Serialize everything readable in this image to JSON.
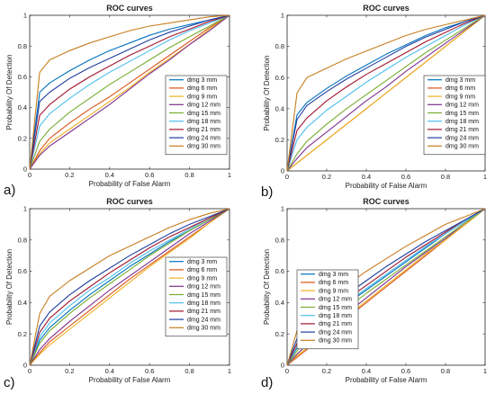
{
  "figure": {
    "series_names": [
      "dmg 3 mm",
      "dmg 6 mm",
      "dmg 9 mm",
      "dmg 12 mm",
      "dmg 15 mm",
      "dmg 18 mm",
      "dmg 21 mm",
      "dmg 24 mm",
      "dmg 30 mm"
    ],
    "series_colors": [
      "#0072BD",
      "#D95319",
      "#EDB120",
      "#7E2F8E",
      "#77AC30",
      "#4DBEEE",
      "#A2142F",
      "#1F3FA0",
      "#C87D1E"
    ],
    "panel_labels": [
      "a)",
      "b)",
      "c)",
      "d)"
    ]
  },
  "chart_data": [
    {
      "type": "line",
      "title": "ROC curves",
      "xlabel": "Probability of False Alarm",
      "ylabel": "Probability Of Detection",
      "xlim": [
        0,
        1
      ],
      "ylim": [
        0,
        1
      ],
      "ticks": [
        "0",
        "0.2",
        "0.4",
        "0.6",
        "0.8",
        "1"
      ],
      "legend_position": "right-middle",
      "grid": false,
      "x": [
        0,
        0.05,
        0.1,
        0.2,
        0.3,
        0.4,
        0.5,
        0.6,
        0.7,
        0.8,
        0.9,
        1
      ],
      "series": [
        {
          "name": "dmg 3 mm",
          "values": [
            0,
            0.5,
            0.56,
            0.64,
            0.71,
            0.77,
            0.82,
            0.87,
            0.91,
            0.94,
            0.97,
            1
          ]
        },
        {
          "name": "dmg 6 mm",
          "values": [
            0,
            0.12,
            0.2,
            0.3,
            0.39,
            0.47,
            0.56,
            0.65,
            0.74,
            0.83,
            0.92,
            1
          ]
        },
        {
          "name": "dmg 9 mm",
          "values": [
            0,
            0.1,
            0.17,
            0.26,
            0.35,
            0.44,
            0.53,
            0.63,
            0.72,
            0.81,
            0.91,
            1
          ]
        },
        {
          "name": "dmg 12 mm",
          "values": [
            0,
            0.09,
            0.15,
            0.24,
            0.33,
            0.42,
            0.52,
            0.62,
            0.71,
            0.81,
            0.9,
            1
          ]
        },
        {
          "name": "dmg 15 mm",
          "values": [
            0,
            0.18,
            0.26,
            0.37,
            0.46,
            0.55,
            0.63,
            0.71,
            0.79,
            0.86,
            0.93,
            1
          ]
        },
        {
          "name": "dmg 18 mm",
          "values": [
            0,
            0.28,
            0.36,
            0.46,
            0.55,
            0.63,
            0.7,
            0.77,
            0.84,
            0.9,
            0.95,
            1
          ]
        },
        {
          "name": "dmg 21 mm",
          "values": [
            0,
            0.35,
            0.42,
            0.52,
            0.6,
            0.67,
            0.74,
            0.8,
            0.86,
            0.91,
            0.96,
            1
          ]
        },
        {
          "name": "dmg 24 mm",
          "values": [
            0,
            0.44,
            0.5,
            0.59,
            0.66,
            0.72,
            0.78,
            0.84,
            0.89,
            0.93,
            0.97,
            1
          ]
        },
        {
          "name": "dmg 30 mm",
          "values": [
            0,
            0.63,
            0.71,
            0.77,
            0.82,
            0.86,
            0.9,
            0.93,
            0.95,
            0.97,
            0.99,
            1
          ]
        }
      ]
    },
    {
      "type": "line",
      "title": "ROC curves",
      "xlabel": "Probability of False Alarm",
      "ylabel": "Probability Of Detection",
      "xlim": [
        0,
        1
      ],
      "ylim": [
        0,
        1
      ],
      "ticks": [
        "0",
        "0.2",
        "0.4",
        "0.6",
        "0.8",
        "1"
      ],
      "legend_position": "right-middle",
      "grid": false,
      "x": [
        0,
        0.05,
        0.1,
        0.2,
        0.3,
        0.4,
        0.5,
        0.6,
        0.7,
        0.8,
        0.9,
        1
      ],
      "series": [
        {
          "name": "dmg 3 mm",
          "values": [
            0,
            0.36,
            0.44,
            0.53,
            0.61,
            0.68,
            0.75,
            0.81,
            0.87,
            0.92,
            0.96,
            1
          ]
        },
        {
          "name": "dmg 6 mm",
          "values": [
            0,
            0.05,
            0.1,
            0.2,
            0.3,
            0.4,
            0.5,
            0.6,
            0.7,
            0.8,
            0.9,
            1
          ]
        },
        {
          "name": "dmg 9 mm",
          "values": [
            0,
            0.05,
            0.1,
            0.2,
            0.3,
            0.4,
            0.5,
            0.6,
            0.7,
            0.8,
            0.9,
            1
          ]
        },
        {
          "name": "dmg 12 mm",
          "values": [
            0,
            0.08,
            0.15,
            0.25,
            0.35,
            0.45,
            0.54,
            0.64,
            0.73,
            0.82,
            0.91,
            1
          ]
        },
        {
          "name": "dmg 15 mm",
          "values": [
            0,
            0.11,
            0.19,
            0.3,
            0.4,
            0.49,
            0.58,
            0.67,
            0.76,
            0.84,
            0.92,
            1
          ]
        },
        {
          "name": "dmg 18 mm",
          "values": [
            0,
            0.2,
            0.28,
            0.39,
            0.48,
            0.57,
            0.65,
            0.73,
            0.8,
            0.87,
            0.94,
            1
          ]
        },
        {
          "name": "dmg 21 mm",
          "values": [
            0,
            0.26,
            0.34,
            0.45,
            0.54,
            0.62,
            0.69,
            0.76,
            0.83,
            0.89,
            0.95,
            1
          ]
        },
        {
          "name": "dmg 24 mm",
          "values": [
            0,
            0.33,
            0.42,
            0.51,
            0.59,
            0.66,
            0.73,
            0.8,
            0.86,
            0.91,
            0.96,
            1
          ]
        },
        {
          "name": "dmg 30 mm",
          "values": [
            0,
            0.5,
            0.6,
            0.66,
            0.72,
            0.77,
            0.82,
            0.87,
            0.91,
            0.94,
            0.97,
            1
          ]
        }
      ]
    },
    {
      "type": "line",
      "title": "ROC curves",
      "xlabel": "Probability of False Alarm",
      "ylabel": "Probability Of Detection",
      "xlim": [
        0,
        1
      ],
      "ylim": [
        0,
        1
      ],
      "ticks": [
        "0",
        "0.2",
        "0.4",
        "0.6",
        "0.8",
        "1"
      ],
      "legend_position": "right-middle",
      "grid": false,
      "x": [
        0,
        0.05,
        0.1,
        0.2,
        0.3,
        0.4,
        0.5,
        0.6,
        0.7,
        0.8,
        0.9,
        1
      ],
      "series": [
        {
          "name": "dmg 3 mm",
          "values": [
            0,
            0.16,
            0.24,
            0.35,
            0.45,
            0.54,
            0.63,
            0.71,
            0.79,
            0.86,
            0.93,
            1
          ]
        },
        {
          "name": "dmg 6 mm",
          "values": [
            0,
            0.08,
            0.15,
            0.25,
            0.35,
            0.45,
            0.55,
            0.64,
            0.73,
            0.82,
            0.91,
            1
          ]
        },
        {
          "name": "dmg 9 mm",
          "values": [
            0,
            0.07,
            0.13,
            0.23,
            0.33,
            0.43,
            0.53,
            0.63,
            0.72,
            0.81,
            0.91,
            1
          ]
        },
        {
          "name": "dmg 12 mm",
          "values": [
            0,
            0.1,
            0.17,
            0.28,
            0.38,
            0.48,
            0.57,
            0.66,
            0.75,
            0.84,
            0.92,
            1
          ]
        },
        {
          "name": "dmg 15 mm",
          "values": [
            0,
            0.14,
            0.22,
            0.33,
            0.43,
            0.52,
            0.61,
            0.7,
            0.78,
            0.86,
            0.93,
            1
          ]
        },
        {
          "name": "dmg 18 mm",
          "values": [
            0,
            0.18,
            0.27,
            0.38,
            0.48,
            0.56,
            0.65,
            0.73,
            0.8,
            0.87,
            0.94,
            1
          ]
        },
        {
          "name": "dmg 21 mm",
          "values": [
            0,
            0.21,
            0.3,
            0.41,
            0.5,
            0.59,
            0.67,
            0.75,
            0.82,
            0.88,
            0.94,
            1
          ]
        },
        {
          "name": "dmg 24 mm",
          "values": [
            0,
            0.25,
            0.34,
            0.45,
            0.54,
            0.62,
            0.7,
            0.77,
            0.84,
            0.9,
            0.95,
            1
          ]
        },
        {
          "name": "dmg 30 mm",
          "values": [
            0,
            0.33,
            0.44,
            0.54,
            0.62,
            0.7,
            0.76,
            0.82,
            0.88,
            0.93,
            0.97,
            1
          ]
        }
      ]
    },
    {
      "type": "line",
      "title": "ROC curves",
      "xlabel": "Probability of False Alarm",
      "ylabel": "Probability Of Detection",
      "xlim": [
        0,
        1
      ],
      "ylim": [
        0,
        1
      ],
      "ticks": [
        "0",
        "0.2",
        "0.4",
        "0.6",
        "0.8",
        "1"
      ],
      "legend_position": "left-middle",
      "grid": false,
      "x": [
        0,
        0.05,
        0.1,
        0.2,
        0.3,
        0.4,
        0.5,
        0.6,
        0.7,
        0.8,
        0.9,
        1
      ],
      "series": [
        {
          "name": "dmg 3 mm",
          "values": [
            0,
            0.11,
            0.18,
            0.29,
            0.39,
            0.48,
            0.57,
            0.66,
            0.75,
            0.84,
            0.92,
            1
          ]
        },
        {
          "name": "dmg 6 mm",
          "values": [
            0,
            0.05,
            0.1,
            0.2,
            0.3,
            0.4,
            0.5,
            0.6,
            0.7,
            0.8,
            0.9,
            1
          ]
        },
        {
          "name": "dmg 9 mm",
          "values": [
            0,
            0.06,
            0.11,
            0.21,
            0.31,
            0.41,
            0.51,
            0.61,
            0.71,
            0.8,
            0.9,
            1
          ]
        },
        {
          "name": "dmg 12 mm",
          "values": [
            0,
            0.07,
            0.13,
            0.23,
            0.33,
            0.43,
            0.53,
            0.63,
            0.72,
            0.81,
            0.91,
            1
          ]
        },
        {
          "name": "dmg 15 mm",
          "values": [
            0,
            0.09,
            0.16,
            0.26,
            0.36,
            0.46,
            0.55,
            0.64,
            0.73,
            0.82,
            0.91,
            1
          ]
        },
        {
          "name": "dmg 18 mm",
          "values": [
            0,
            0.12,
            0.19,
            0.3,
            0.4,
            0.49,
            0.58,
            0.67,
            0.76,
            0.84,
            0.92,
            1
          ]
        },
        {
          "name": "dmg 21 mm",
          "values": [
            0,
            0.14,
            0.22,
            0.33,
            0.42,
            0.51,
            0.6,
            0.69,
            0.77,
            0.85,
            0.93,
            1
          ]
        },
        {
          "name": "dmg 24 mm",
          "values": [
            0,
            0.17,
            0.25,
            0.36,
            0.45,
            0.54,
            0.63,
            0.71,
            0.79,
            0.86,
            0.93,
            1
          ]
        },
        {
          "name": "dmg 30 mm",
          "values": [
            0,
            0.22,
            0.31,
            0.42,
            0.51,
            0.6,
            0.68,
            0.76,
            0.83,
            0.9,
            0.95,
            1
          ]
        }
      ]
    }
  ]
}
